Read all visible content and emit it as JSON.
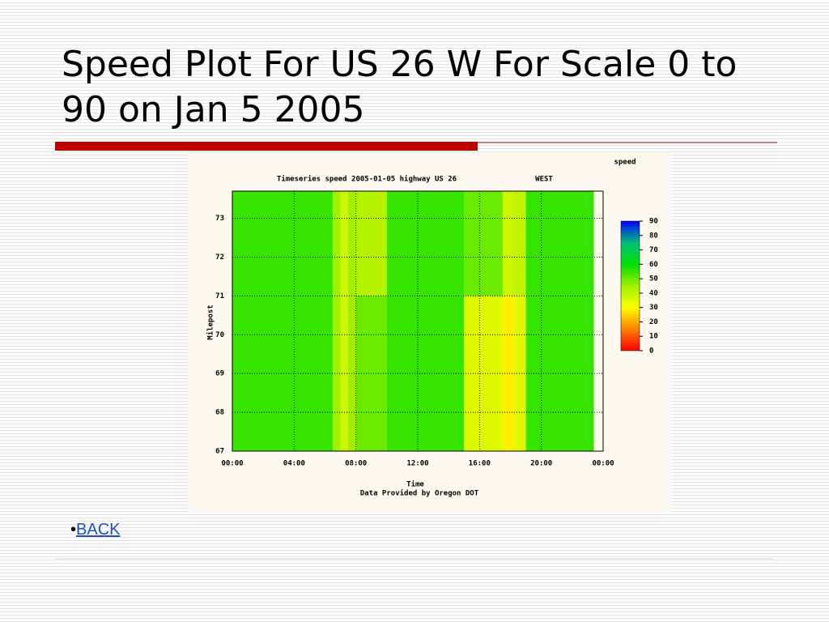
{
  "slide": {
    "title": "Speed Plot For US 26 W For Scale 0 to 90 on Jan 5 2005",
    "bullet_link": "BACK"
  },
  "chart_data": {
    "type": "heatmap",
    "title": "Timeseries speed 2005-01-05 highway US 26",
    "direction": "WEST",
    "colorbar_label": "speed",
    "x_label": "Time",
    "note": "Data Provided by Oregon DOT",
    "y_label": "Milepost",
    "xlim": [
      0,
      24
    ],
    "xticks": [
      {
        "value": 0,
        "label": "00:00"
      },
      {
        "value": 4,
        "label": "04:00"
      },
      {
        "value": 8,
        "label": "08:00"
      },
      {
        "value": 12,
        "label": "12:00"
      },
      {
        "value": 16,
        "label": "16:00"
      },
      {
        "value": 20,
        "label": "20:00"
      },
      {
        "value": 24,
        "label": "00:00"
      }
    ],
    "ylim": [
      67,
      73.7
    ],
    "yticks": [
      67,
      68,
      69,
      70,
      71,
      72,
      73
    ],
    "clim": [
      0,
      90
    ],
    "cticks": [
      0,
      10,
      20,
      30,
      40,
      50,
      60,
      70,
      80,
      90
    ],
    "colormap": [
      "#ff0000",
      "#ff8000",
      "#ffff00",
      "#a0f000",
      "#00e000",
      "#00c080",
      "#0000ff"
    ],
    "grid": true,
    "x": [
      0,
      6.5,
      7,
      7.5,
      8,
      10,
      15,
      16,
      17.5,
      18.2,
      19,
      23.4
    ],
    "y": [
      67,
      71,
      73.7
    ],
    "values": [
      [
        55,
        45,
        38,
        45,
        50,
        55,
        35,
        35,
        28,
        35,
        55
      ],
      [
        55,
        45,
        38,
        45,
        42,
        55,
        50,
        50,
        38,
        40,
        55
      ]
    ]
  }
}
